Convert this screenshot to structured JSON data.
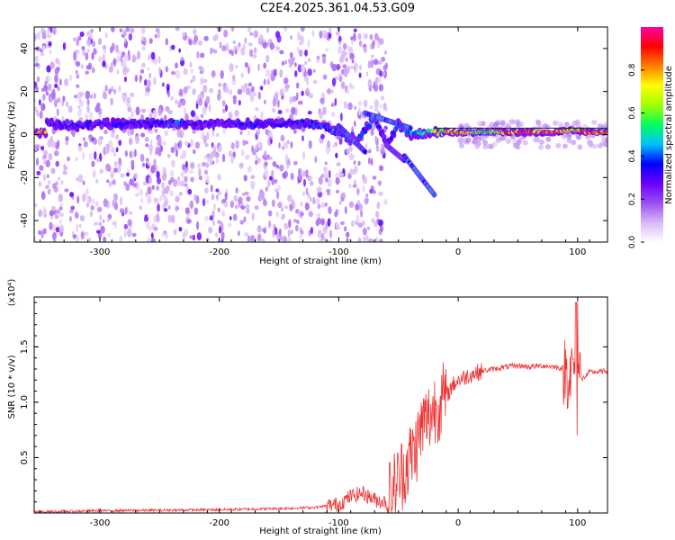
{
  "title": "C2E4.2025.361.04.53.G09",
  "chart_data": [
    {
      "type": "heatmap",
      "name": "spectrogram",
      "xlabel": "Height of straight line (km)",
      "ylabel": "Frequency (Hz)",
      "xlim": [
        -355,
        125
      ],
      "ylim": [
        -50,
        50
      ],
      "xticks": [
        -300,
        -200,
        -100,
        0,
        100
      ],
      "xtick_labels": [
        "-300",
        "-200",
        "-100",
        "0",
        "100"
      ],
      "yticks": [
        -40,
        -20,
        0,
        20,
        40
      ],
      "ytick_labels": [
        "-40",
        "-20",
        "0",
        "20",
        "40"
      ],
      "colorbar": {
        "label": "Normalized spectral amplitude",
        "range": [
          0,
          1
        ],
        "ticks": [
          0.0,
          0.2,
          0.4,
          0.6,
          0.8
        ],
        "tick_labels": [
          "0.0",
          "0.2",
          "0.4",
          "0.6",
          "0.8"
        ],
        "colors": [
          "#ffffff",
          "#d9b8f5",
          "#9a4ef0",
          "#6a00ff",
          "#0000ff",
          "#00c0ff",
          "#00ff60",
          "#a0ff00",
          "#ffff00",
          "#ff8000",
          "#ff0000",
          "#ff00a0"
        ]
      },
      "ridge": [
        {
          "h": -345,
          "f": 5,
          "amp": 0.3
        },
        {
          "h": -320,
          "f": 4,
          "amp": 0.35
        },
        {
          "h": -300,
          "f": 5,
          "amp": 0.32
        },
        {
          "h": -280,
          "f": 5,
          "amp": 0.35
        },
        {
          "h": -260,
          "f": 5,
          "amp": 0.34
        },
        {
          "h": -240,
          "f": 5,
          "amp": 0.42
        },
        {
          "h": -220,
          "f": 5,
          "amp": 0.32
        },
        {
          "h": -200,
          "f": 5,
          "amp": 0.3
        },
        {
          "h": -180,
          "f": 5,
          "amp": 0.38
        },
        {
          "h": -160,
          "f": 5,
          "amp": 0.33
        },
        {
          "h": -140,
          "f": 5,
          "amp": 0.34
        },
        {
          "h": -120,
          "f": 5,
          "amp": 0.4
        },
        {
          "h": -100,
          "f": 1,
          "amp": 0.42
        },
        {
          "h": -85,
          "f": -3,
          "amp": 0.38
        },
        {
          "h": -70,
          "f": 8,
          "amp": 0.45
        },
        {
          "h": -60,
          "f": -5,
          "amp": 0.35
        },
        {
          "h": -50,
          "f": 5,
          "amp": 0.45
        },
        {
          "h": -40,
          "f": 0,
          "amp": 0.5
        },
        {
          "h": -25,
          "f": 1,
          "amp": 0.55
        },
        {
          "h": -10,
          "f": 1,
          "amp": 0.8
        },
        {
          "h": 0,
          "f": 1,
          "amp": 0.85
        },
        {
          "h": 20,
          "f": 1,
          "amp": 0.55
        },
        {
          "h": 40,
          "f": 1,
          "amp": 0.85
        },
        {
          "h": 60,
          "f": 1,
          "amp": 0.92
        },
        {
          "h": 80,
          "f": 1,
          "amp": 0.92
        },
        {
          "h": 95,
          "f": 2,
          "amp": 0.75
        },
        {
          "h": 110,
          "f": 1,
          "amp": 0.88
        },
        {
          "h": 125,
          "f": 1,
          "amp": 0.9
        }
      ],
      "branches": [
        {
          "from_h": -100,
          "from_f": 4,
          "to_h": -78,
          "to_f": -8
        },
        {
          "from_h": -78,
          "from_f": 10,
          "to_h": -40,
          "to_f": 3
        },
        {
          "from_h": -60,
          "from_f": -5,
          "to_h": -45,
          "to_f": -12
        },
        {
          "from_h": -45,
          "from_f": -10,
          "to_h": -20,
          "to_f": -28
        }
      ]
    },
    {
      "type": "line",
      "name": "snr",
      "xlabel": "Height of straight line (km)",
      "ylabel": "SNR (10 * v/v)",
      "multiplier": "(x10⁴)",
      "xlim": [
        -355,
        125
      ],
      "ylim": [
        0,
        1.95
      ],
      "xticks": [
        -300,
        -200,
        -100,
        0,
        100
      ],
      "xtick_labels": [
        "-300",
        "-200",
        "-100",
        "0",
        "100"
      ],
      "yticks": [
        0.5,
        1.0,
        1.5
      ],
      "ytick_labels": [
        "0.5",
        "1.0",
        "1.5"
      ],
      "color": "#ee3333",
      "series": [
        {
          "name": "SNR",
          "x": [
            -355,
            -300,
            -250,
            -200,
            -150,
            -120,
            -100,
            -90,
            -80,
            -70,
            -60,
            -50,
            -40,
            -35,
            -30,
            -25,
            -20,
            -15,
            -10,
            -5,
            0,
            10,
            20,
            30,
            40,
            50,
            60,
            70,
            80,
            90,
            95,
            98,
            100,
            103,
            110,
            125
          ],
          "y": [
            0.01,
            0.02,
            0.025,
            0.03,
            0.04,
            0.05,
            0.08,
            0.15,
            0.18,
            0.12,
            0.1,
            0.3,
            0.5,
            0.6,
            0.8,
            0.85,
            0.95,
            1.0,
            1.05,
            1.15,
            1.2,
            1.25,
            1.28,
            1.3,
            1.32,
            1.33,
            1.32,
            1.33,
            1.32,
            1.3,
            1.25,
            1.4,
            1.3,
            1.2,
            1.27,
            1.28
          ]
        }
      ]
    }
  ]
}
